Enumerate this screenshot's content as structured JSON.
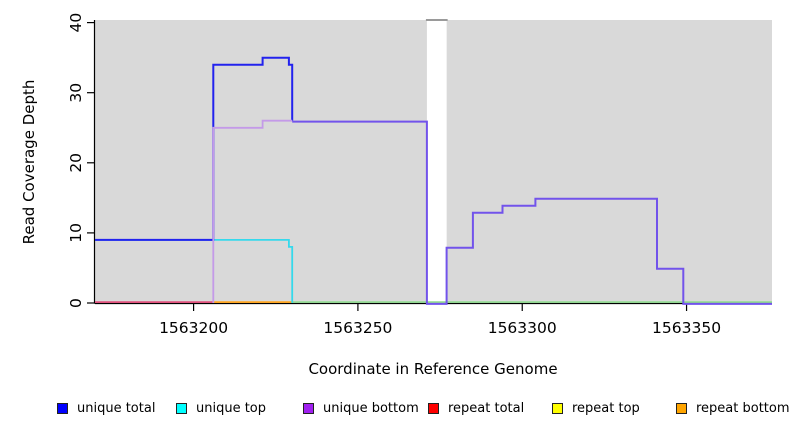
{
  "chart_data": {
    "type": "line",
    "subtype": "step-coverage-plot",
    "title": "",
    "xlabel": "Coordinate in Reference Genome",
    "ylabel": "Read Coverage Depth",
    "xlim": [
      1563170,
      1563376
    ],
    "ylim": [
      0,
      40
    ],
    "x_ticks": [
      "1563200",
      "1563250",
      "1563300",
      "1563350"
    ],
    "x_tick_values": [
      1563200,
      1563250,
      1563300,
      1563350
    ],
    "y_ticks": [
      "0",
      "10",
      "20",
      "30",
      "40"
    ],
    "y_tick_values": [
      0,
      10,
      20,
      30,
      40
    ],
    "grid": false,
    "plot_bg_color": "#d9d9d9",
    "no_data_gap": {
      "x_start": 1563271,
      "x_end": 1563277
    },
    "series": [
      {
        "name": "unique total",
        "color": "#0000ff",
        "steps": [
          [
            1563170,
            9
          ],
          [
            1563206,
            34
          ],
          [
            1563221,
            35
          ],
          [
            1563229,
            34
          ],
          [
            1563230,
            26
          ],
          [
            1563271,
            0
          ],
          [
            1563277,
            8
          ],
          [
            1563285,
            13
          ],
          [
            1563294,
            14
          ],
          [
            1563304,
            15
          ],
          [
            1563341,
            5
          ],
          [
            1563349,
            0
          ]
        ],
        "end_x": 1563376
      },
      {
        "name": "unique top",
        "color": "#00ffff",
        "steps": [
          [
            1563170,
            9
          ],
          [
            1563229,
            8
          ],
          [
            1563230,
            0
          ]
        ],
        "end_x": 1563376
      },
      {
        "name": "unique bottom",
        "color": "#a020f0",
        "steps": [
          [
            1563170,
            0
          ],
          [
            1563206,
            25
          ],
          [
            1563221,
            26
          ],
          [
            1563271,
            0
          ],
          [
            1563277,
            8
          ],
          [
            1563285,
            13
          ],
          [
            1563294,
            14
          ],
          [
            1563304,
            15
          ],
          [
            1563341,
            5
          ],
          [
            1563349,
            0
          ]
        ],
        "end_x": 1563376
      },
      {
        "name": "repeat total",
        "color": "#ff0000",
        "steps": [
          [
            1563170,
            0
          ]
        ],
        "end_x": 1563376
      },
      {
        "name": "repeat top",
        "color": "#ffff00",
        "steps": [
          [
            1563170,
            0
          ]
        ],
        "end_x": 1563376
      },
      {
        "name": "repeat bottom",
        "color": "#ffa500",
        "steps": [
          [
            1563170,
            0
          ]
        ],
        "end_x": 1563376
      }
    ],
    "render_paths": [
      {
        "name": "baseline-repeat-total-visible",
        "color": "#e0517c",
        "width": 1.8,
        "dy": -0.9,
        "pts": [
          [
            1563170,
            0
          ]
        ],
        "end_x": 1563206
      },
      {
        "name": "baseline-repeat-bottom-visible",
        "color": "#ffa520",
        "width": 1.8,
        "dy": -0.9,
        "pts": [
          [
            1563206,
            0
          ]
        ],
        "end_x": 1563230
      },
      {
        "name": "baseline-top-blend-visible",
        "color": "#8fdc8f",
        "width": 1.6,
        "dy": -0.9,
        "pts": [
          [
            1563230,
            0
          ]
        ],
        "end_x": 1563376
      },
      {
        "name": "unique-top-visible",
        "color": "#35d9ec",
        "width": 1.8,
        "dy": 0,
        "pts": [
          [
            1563170,
            9
          ],
          [
            1563229,
            8
          ],
          [
            1563230,
            0
          ]
        ],
        "end_x": 1563230
      },
      {
        "name": "unique-total-visible",
        "color": "#2222ee",
        "width": 2,
        "dy": 0,
        "pts": [
          [
            1563170,
            9
          ],
          [
            1563206,
            34
          ],
          [
            1563221,
            35
          ],
          [
            1563229,
            34
          ],
          [
            1563230,
            26
          ]
        ],
        "end_x": 1563230
      },
      {
        "name": "unique-bottom-visible",
        "color": "#c49ae8",
        "width": 1.8,
        "dy": 0,
        "pts": [
          [
            1563206,
            0
          ],
          [
            1563206,
            25
          ],
          [
            1563221,
            26
          ]
        ],
        "end_x": 1563230
      },
      {
        "name": "unique-total-bottom-overlap-visible",
        "color": "#7253eb",
        "width": 2,
        "dy": 0.9,
        "pts": [
          [
            1563230,
            26
          ],
          [
            1563271,
            0
          ],
          [
            1563277,
            8
          ],
          [
            1563285,
            13
          ],
          [
            1563294,
            14
          ],
          [
            1563304,
            15
          ],
          [
            1563341,
            5
          ],
          [
            1563349,
            0
          ]
        ],
        "end_x": 1563376
      }
    ],
    "legend": [
      {
        "label": "unique total",
        "color": "#0000ff"
      },
      {
        "label": "unique top",
        "color": "#00ffff"
      },
      {
        "label": "unique bottom",
        "color": "#a020f0"
      },
      {
        "label": "repeat total",
        "color": "#ff0000"
      },
      {
        "label": "repeat top",
        "color": "#ffff00"
      },
      {
        "label": "repeat bottom",
        "color": "#ffa500"
      }
    ]
  }
}
